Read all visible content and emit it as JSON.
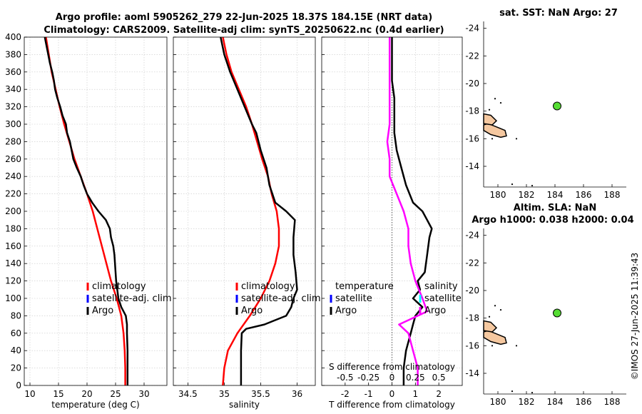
{
  "title_line1": "Argo profile: aoml 5905262_279 22-Jun-2025 18.37S 184.15E (NRT data)",
  "title_line2": "Climatology: CARS2009. Satellite-adj clim: synTS_20250622.nc (0.4d earlier)",
  "timestamp": "©IMOS 27-Jun-2025 11:39:43",
  "colors": {
    "climatology": "#ff0000",
    "satellite": "#0000ff",
    "argo": "#000000",
    "argo_s_diff": "#ff00ff",
    "satellite_s_diff": "#00ffff",
    "land": "#f5c8a0",
    "float": "#55dd33"
  },
  "chart_data": [
    {
      "id": "temperature",
      "type": "line",
      "xlabel": "temperature (deg C)",
      "ylabel": "",
      "xlim": [
        9,
        34
      ],
      "ylim": [
        400,
        0
      ],
      "xticks": [
        10,
        15,
        20,
        25,
        30
      ],
      "yticks": [
        0,
        20,
        40,
        60,
        80,
        100,
        120,
        140,
        160,
        180,
        200,
        220,
        240,
        260,
        280,
        300,
        320,
        340,
        360,
        380,
        400
      ],
      "legend": [
        "climatology",
        "satellite-adj. clim",
        "Argo"
      ],
      "series": [
        {
          "name": "climatology",
          "color": "#ff0000",
          "points": [
            [
              26.7,
              0
            ],
            [
              26.7,
              20
            ],
            [
              26.6,
              40
            ],
            [
              26.4,
              60
            ],
            [
              26.0,
              80
            ],
            [
              25.2,
              100
            ],
            [
              24.2,
              120
            ],
            [
              23.4,
              140
            ],
            [
              22.6,
              160
            ],
            [
              21.8,
              180
            ],
            [
              21.0,
              200
            ],
            [
              20.0,
              220
            ],
            [
              18.9,
              240
            ],
            [
              17.8,
              260
            ],
            [
              16.9,
              280
            ],
            [
              16.0,
              300
            ],
            [
              15.2,
              320
            ],
            [
              14.5,
              340
            ],
            [
              13.8,
              360
            ],
            [
              13.3,
              380
            ],
            [
              12.8,
              400
            ]
          ]
        },
        {
          "name": "Argo",
          "color": "#000000",
          "points": [
            [
              27.1,
              0
            ],
            [
              27.1,
              20
            ],
            [
              27.1,
              40
            ],
            [
              27.0,
              60
            ],
            [
              27.0,
              70
            ],
            [
              26.8,
              80
            ],
            [
              26.0,
              90
            ],
            [
              25.5,
              100
            ],
            [
              25.3,
              110
            ],
            [
              25.1,
              120
            ],
            [
              25.0,
              130
            ],
            [
              24.9,
              140
            ],
            [
              24.8,
              150
            ],
            [
              24.6,
              160
            ],
            [
              24.2,
              170
            ],
            [
              24.0,
              180
            ],
            [
              23.3,
              190
            ],
            [
              22.0,
              200
            ],
            [
              20.9,
              210
            ],
            [
              20.0,
              220
            ],
            [
              19.4,
              230
            ],
            [
              18.9,
              240
            ],
            [
              18.2,
              250
            ],
            [
              17.6,
              260
            ],
            [
              17.3,
              270
            ],
            [
              17.0,
              280
            ],
            [
              16.5,
              290
            ],
            [
              16.3,
              300
            ],
            [
              15.7,
              310
            ],
            [
              15.3,
              320
            ],
            [
              14.8,
              330
            ],
            [
              14.4,
              340
            ],
            [
              14.2,
              350
            ],
            [
              13.9,
              360
            ],
            [
              13.5,
              370
            ],
            [
              13.2,
              380
            ],
            [
              12.9,
              390
            ],
            [
              12.6,
              400
            ]
          ]
        }
      ]
    },
    {
      "id": "salinity",
      "type": "line",
      "xlabel": "salinity",
      "ylabel": "",
      "xlim": [
        34.3,
        36.25
      ],
      "ylim": [
        400,
        0
      ],
      "xticks": [
        34.5,
        35,
        35.5,
        36
      ],
      "xticklabels": [
        "34.5",
        "35",
        "35.5",
        "36"
      ],
      "legend": [
        "climatology",
        "satellite-adj. clim",
        "Argo"
      ],
      "series": [
        {
          "name": "climatology",
          "color": "#ff0000",
          "points": [
            [
              34.98,
              0
            ],
            [
              35.0,
              20
            ],
            [
              35.05,
              40
            ],
            [
              35.18,
              60
            ],
            [
              35.35,
              80
            ],
            [
              35.5,
              100
            ],
            [
              35.62,
              120
            ],
            [
              35.7,
              140
            ],
            [
              35.75,
              160
            ],
            [
              35.75,
              180
            ],
            [
              35.72,
              200
            ],
            [
              35.65,
              220
            ],
            [
              35.6,
              240
            ],
            [
              35.52,
              260
            ],
            [
              35.45,
              280
            ],
            [
              35.38,
              300
            ],
            [
              35.3,
              320
            ],
            [
              35.2,
              340
            ],
            [
              35.1,
              360
            ],
            [
              35.03,
              380
            ],
            [
              34.98,
              400
            ]
          ]
        },
        {
          "name": "Argo",
          "color": "#000000",
          "points": [
            [
              35.23,
              0
            ],
            [
              35.23,
              20
            ],
            [
              35.23,
              40
            ],
            [
              35.24,
              60
            ],
            [
              35.3,
              65
            ],
            [
              35.55,
              70
            ],
            [
              35.85,
              80
            ],
            [
              35.92,
              90
            ],
            [
              35.95,
              100
            ],
            [
              36.0,
              110
            ],
            [
              35.98,
              130
            ],
            [
              35.95,
              150
            ],
            [
              35.95,
              170
            ],
            [
              35.97,
              190
            ],
            [
              35.85,
              200
            ],
            [
              35.7,
              210
            ],
            [
              35.62,
              230
            ],
            [
              35.58,
              250
            ],
            [
              35.5,
              270
            ],
            [
              35.44,
              290
            ],
            [
              35.38,
              300
            ],
            [
              35.28,
              320
            ],
            [
              35.18,
              340
            ],
            [
              35.08,
              360
            ],
            [
              35.0,
              380
            ],
            [
              34.95,
              400
            ]
          ]
        }
      ]
    },
    {
      "id": "difference",
      "type": "line",
      "xlabel": "T difference from climatology",
      "top_xlabel": "S difference from climatology",
      "xlim": [
        -3,
        3
      ],
      "ylim": [
        400,
        0
      ],
      "xticks": [
        -2,
        -1,
        0,
        1,
        2
      ],
      "top_xticks": [
        -0.5,
        -0.25,
        0,
        0.25,
        0.5
      ],
      "top_xticklabels": [
        "-0.5",
        "-0.25",
        "0",
        "0.25",
        "0.5"
      ],
      "legend_left_title": "temperature",
      "legend_right_title": "salinity",
      "legend_left": [
        "satellite",
        "Argo"
      ],
      "legend_right": [
        "satellite",
        "Argo"
      ],
      "series": [
        {
          "name": "Argo T diff",
          "color": "#000000",
          "points": [
            [
              0.5,
              0
            ],
            [
              0.5,
              20
            ],
            [
              0.6,
              40
            ],
            [
              0.8,
              60
            ],
            [
              0.9,
              70
            ],
            [
              1.0,
              80
            ],
            [
              1.3,
              90
            ],
            [
              0.9,
              100
            ],
            [
              1.2,
              110
            ],
            [
              1.1,
              120
            ],
            [
              1.4,
              130
            ],
            [
              1.5,
              150
            ],
            [
              1.6,
              170
            ],
            [
              1.7,
              180
            ],
            [
              1.5,
              190
            ],
            [
              1.3,
              200
            ],
            [
              0.9,
              210
            ],
            [
              0.6,
              230
            ],
            [
              0.4,
              250
            ],
            [
              0.2,
              270
            ],
            [
              0.1,
              290
            ],
            [
              0.1,
              310
            ],
            [
              0.1,
              330
            ],
            [
              0.0,
              350
            ],
            [
              0.0,
              370
            ],
            [
              0.0,
              400
            ]
          ]
        },
        {
          "name": "Argo S diff",
          "color": "#ff00ff",
          "points": [
            [
              1.1,
              0
            ],
            [
              1.1,
              20
            ],
            [
              0.9,
              40
            ],
            [
              0.7,
              60
            ],
            [
              0.3,
              70
            ],
            [
              1.5,
              85
            ],
            [
              1.3,
              100
            ],
            [
              1.0,
              120
            ],
            [
              0.8,
              140
            ],
            [
              0.7,
              160
            ],
            [
              0.7,
              180
            ],
            [
              0.5,
              200
            ],
            [
              0.2,
              220
            ],
            [
              -0.1,
              240
            ],
            [
              -0.1,
              260
            ],
            [
              -0.2,
              280
            ],
            [
              -0.1,
              300
            ],
            [
              -0.1,
              320
            ],
            [
              -0.1,
              340
            ],
            [
              -0.1,
              360
            ],
            [
              -0.1,
              380
            ],
            [
              -0.1,
              400
            ]
          ]
        }
      ]
    },
    {
      "id": "map_sst",
      "type": "scatter",
      "title": "sat. SST: NaN Argo: 27",
      "xlim": [
        179,
        189
      ],
      "ylim": [
        -24.5,
        -12.5
      ],
      "xticks": [
        180,
        182,
        184,
        186,
        188
      ],
      "yticks": [
        -24,
        -22,
        -20,
        -18,
        -16,
        -14
      ],
      "float": {
        "x": 184.15,
        "y": -18.37
      }
    },
    {
      "id": "map_sla",
      "type": "scatter",
      "title": "Altim. SLA: NaN",
      "subtitle": "Argo h1000: 0.038 h2000: 0.04",
      "xlim": [
        179,
        189
      ],
      "ylim": [
        -24.5,
        -12.5
      ],
      "xticks": [
        180,
        182,
        184,
        186,
        188
      ],
      "yticks": [
        -24,
        -22,
        -20,
        -18,
        -16,
        -14
      ],
      "float": {
        "x": 184.15,
        "y": -18.37
      }
    }
  ]
}
